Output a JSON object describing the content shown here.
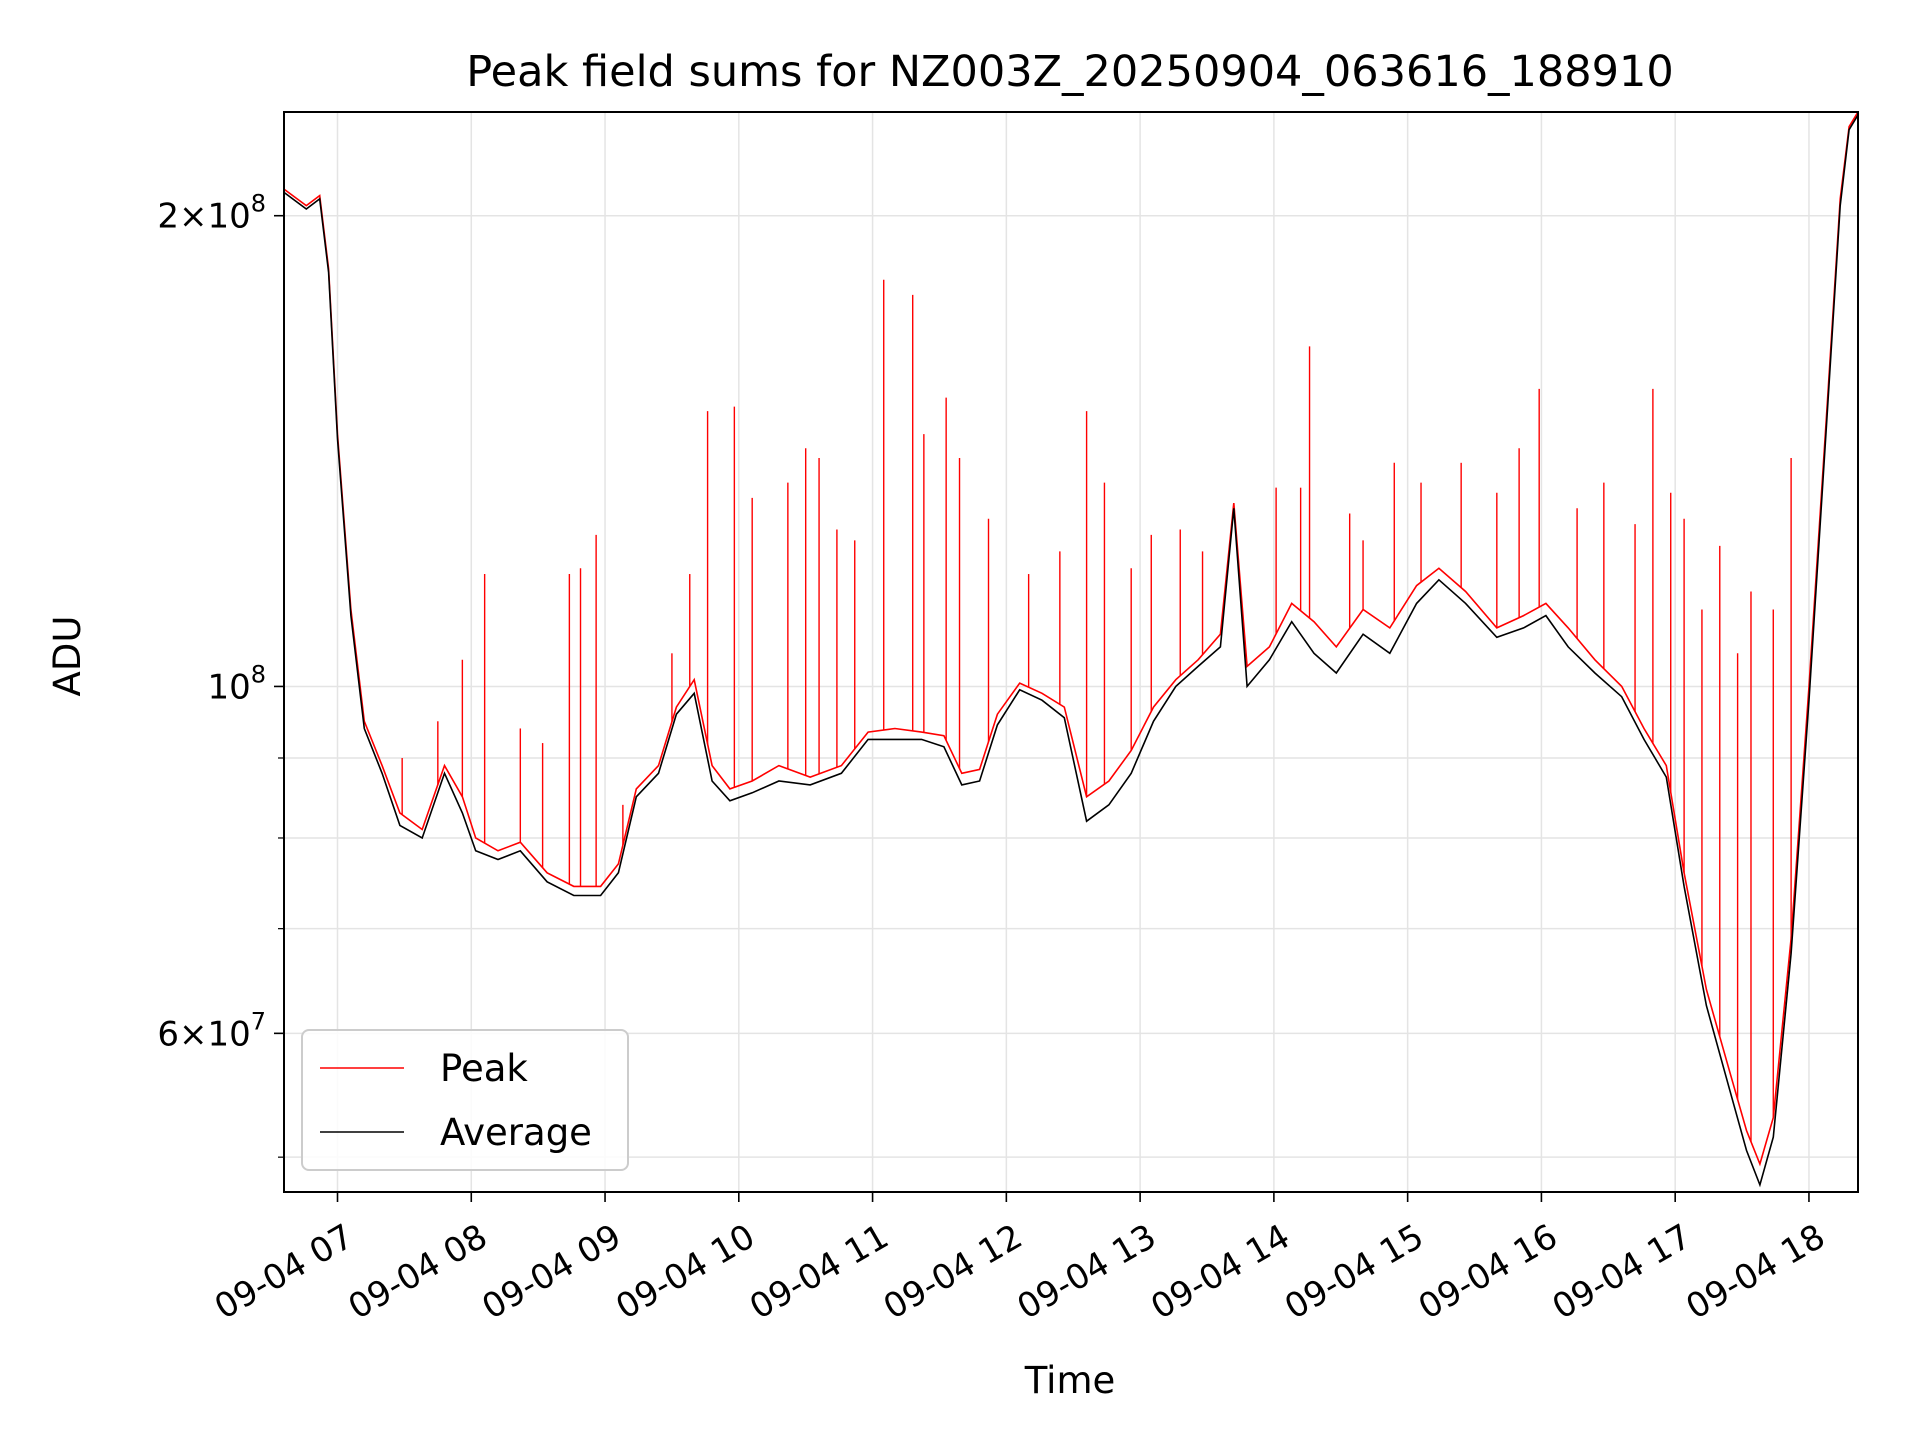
{
  "chart_data": {
    "type": "line",
    "title": "Peak field sums for NZ003Z_20250904_063616_188910",
    "xlabel": "Time",
    "ylabel": "ADU",
    "yscale": "log",
    "xlim": [
      "2025-09-04T06:36",
      "2025-09-04T18:22"
    ],
    "ylim": [
      47500000,
      233000000
    ],
    "grid": true,
    "legend_position": "lower-left",
    "x_ticks": [
      {
        "value": "2025-09-04T07:00",
        "label": "09-04 07"
      },
      {
        "value": "2025-09-04T08:00",
        "label": "09-04 08"
      },
      {
        "value": "2025-09-04T09:00",
        "label": "09-04 09"
      },
      {
        "value": "2025-09-04T10:00",
        "label": "09-04 10"
      },
      {
        "value": "2025-09-04T11:00",
        "label": "09-04 11"
      },
      {
        "value": "2025-09-04T12:00",
        "label": "09-04 12"
      },
      {
        "value": "2025-09-04T13:00",
        "label": "09-04 13"
      },
      {
        "value": "2025-09-04T14:00",
        "label": "09-04 14"
      },
      {
        "value": "2025-09-04T15:00",
        "label": "09-04 15"
      },
      {
        "value": "2025-09-04T16:00",
        "label": "09-04 16"
      },
      {
        "value": "2025-09-04T17:00",
        "label": "09-04 17"
      },
      {
        "value": "2025-09-04T18:00",
        "label": "09-04 18"
      }
    ],
    "y_ticks": [
      {
        "value": 200000000,
        "mantissa": "2",
        "exponent": "8"
      },
      {
        "value": 100000000,
        "mantissa": "",
        "exponent": "8"
      },
      {
        "value": 60000000,
        "mantissa": "6",
        "exponent": "7"
      }
    ],
    "y_minor_ticks": [
      50000000,
      70000000,
      80000000,
      90000000
    ],
    "series": [
      {
        "name": "Peak",
        "color": "#ff0000",
        "points": [
          [
            "2025-09-04T06:36",
            208000000
          ],
          [
            "2025-09-04T06:46",
            203000000
          ],
          [
            "2025-09-04T06:52",
            206000000
          ],
          [
            "2025-09-04T06:56",
            185000000
          ],
          [
            "2025-09-04T07:00",
            145000000
          ],
          [
            "2025-09-04T07:06",
            112000000
          ],
          [
            "2025-09-04T07:12",
            95000000
          ],
          [
            "2025-09-04T07:20",
            89000000
          ],
          [
            "2025-09-04T07:28",
            83000000
          ],
          [
            "2025-09-04T07:38",
            81000000
          ],
          [
            "2025-09-04T07:48",
            89000000
          ],
          [
            "2025-09-04T07:56",
            85000000
          ],
          [
            "2025-09-04T08:02",
            80000000
          ],
          [
            "2025-09-04T08:12",
            78500000
          ],
          [
            "2025-09-04T08:22",
            79500000
          ],
          [
            "2025-09-04T08:34",
            76000000
          ],
          [
            "2025-09-04T08:46",
            74500000
          ],
          [
            "2025-09-04T08:58",
            74500000
          ],
          [
            "2025-09-04T09:06",
            77000000
          ],
          [
            "2025-09-04T09:14",
            86000000
          ],
          [
            "2025-09-04T09:24",
            89000000
          ],
          [
            "2025-09-04T09:32",
            97000000
          ],
          [
            "2025-09-04T09:40",
            101000000
          ],
          [
            "2025-09-04T09:48",
            89000000
          ],
          [
            "2025-09-04T09:56",
            86000000
          ],
          [
            "2025-09-04T10:06",
            87000000
          ],
          [
            "2025-09-04T10:18",
            89000000
          ],
          [
            "2025-09-04T10:32",
            87500000
          ],
          [
            "2025-09-04T10:46",
            89000000
          ],
          [
            "2025-09-04T10:58",
            93500000
          ],
          [
            "2025-09-04T11:10",
            94000000
          ],
          [
            "2025-09-04T11:22",
            93500000
          ],
          [
            "2025-09-04T11:32",
            93000000
          ],
          [
            "2025-09-04T11:40",
            88000000
          ],
          [
            "2025-09-04T11:48",
            88500000
          ],
          [
            "2025-09-04T11:56",
            96000000
          ],
          [
            "2025-09-04T12:06",
            100500000
          ],
          [
            "2025-09-04T12:16",
            99000000
          ],
          [
            "2025-09-04T12:26",
            97000000
          ],
          [
            "2025-09-04T12:36",
            85000000
          ],
          [
            "2025-09-04T12:46",
            87000000
          ],
          [
            "2025-09-04T12:56",
            91000000
          ],
          [
            "2025-09-04T13:06",
            97000000
          ],
          [
            "2025-09-04T13:16",
            101000000
          ],
          [
            "2025-09-04T13:26",
            104000000
          ],
          [
            "2025-09-04T13:36",
            108000000
          ],
          [
            "2025-09-04T13:42",
            131000000
          ],
          [
            "2025-09-04T13:48",
            103000000
          ],
          [
            "2025-09-04T13:58",
            106000000
          ],
          [
            "2025-09-04T14:08",
            113000000
          ],
          [
            "2025-09-04T14:18",
            110000000
          ],
          [
            "2025-09-04T14:28",
            106000000
          ],
          [
            "2025-09-04T14:40",
            112000000
          ],
          [
            "2025-09-04T14:52",
            109000000
          ],
          [
            "2025-09-04T15:04",
            116000000
          ],
          [
            "2025-09-04T15:14",
            119000000
          ],
          [
            "2025-09-04T15:26",
            115000000
          ],
          [
            "2025-09-04T15:40",
            109000000
          ],
          [
            "2025-09-04T15:52",
            111000000
          ],
          [
            "2025-09-04T16:02",
            113000000
          ],
          [
            "2025-09-04T16:12",
            109000000
          ],
          [
            "2025-09-04T16:24",
            104000000
          ],
          [
            "2025-09-04T16:36",
            100000000
          ],
          [
            "2025-09-04T16:46",
            94000000
          ],
          [
            "2025-09-04T16:56",
            89000000
          ],
          [
            "2025-09-04T17:04",
            76000000
          ],
          [
            "2025-09-04T17:14",
            64000000
          ],
          [
            "2025-09-04T17:24",
            57000000
          ],
          [
            "2025-09-04T17:32",
            52000000
          ],
          [
            "2025-09-04T17:38",
            49500000
          ],
          [
            "2025-09-04T17:44",
            53000000
          ],
          [
            "2025-09-04T17:52",
            69000000
          ],
          [
            "2025-09-04T18:00",
            100000000
          ],
          [
            "2025-09-04T18:08",
            150000000
          ],
          [
            "2025-09-04T18:14",
            205000000
          ],
          [
            "2025-09-04T18:18",
            228000000
          ],
          [
            "2025-09-04T18:22",
            233000000
          ]
        ],
        "spikes": [
          [
            "2025-09-04T07:29",
            90000000
          ],
          [
            "2025-09-04T07:45",
            95000000
          ],
          [
            "2025-09-04T07:56",
            104000000
          ],
          [
            "2025-09-04T08:06",
            118000000
          ],
          [
            "2025-09-04T08:22",
            94000000
          ],
          [
            "2025-09-04T08:32",
            92000000
          ],
          [
            "2025-09-04T08:44",
            118000000
          ],
          [
            "2025-09-04T08:49",
            119000000
          ],
          [
            "2025-09-04T08:56",
            125000000
          ],
          [
            "2025-09-04T09:08",
            84000000
          ],
          [
            "2025-09-04T09:30",
            105000000
          ],
          [
            "2025-09-04T09:38",
            118000000
          ],
          [
            "2025-09-04T09:46",
            150000000
          ],
          [
            "2025-09-04T09:58",
            151000000
          ],
          [
            "2025-09-04T10:06",
            132000000
          ],
          [
            "2025-09-04T10:22",
            135000000
          ],
          [
            "2025-09-04T10:30",
            142000000
          ],
          [
            "2025-09-04T10:36",
            140000000
          ],
          [
            "2025-09-04T10:44",
            126000000
          ],
          [
            "2025-09-04T10:52",
            124000000
          ],
          [
            "2025-09-04T11:05",
            182000000
          ],
          [
            "2025-09-04T11:18",
            178000000
          ],
          [
            "2025-09-04T11:23",
            145000000
          ],
          [
            "2025-09-04T11:33",
            153000000
          ],
          [
            "2025-09-04T11:39",
            140000000
          ],
          [
            "2025-09-04T11:52",
            128000000
          ],
          [
            "2025-09-04T12:10",
            118000000
          ],
          [
            "2025-09-04T12:24",
            122000000
          ],
          [
            "2025-09-04T12:36",
            150000000
          ],
          [
            "2025-09-04T12:44",
            135000000
          ],
          [
            "2025-09-04T12:56",
            119000000
          ],
          [
            "2025-09-04T13:05",
            125000000
          ],
          [
            "2025-09-04T13:18",
            126000000
          ],
          [
            "2025-09-04T13:28",
            122000000
          ],
          [
            "2025-09-04T14:01",
            134000000
          ],
          [
            "2025-09-04T14:12",
            134000000
          ],
          [
            "2025-09-04T14:16",
            165000000
          ],
          [
            "2025-09-04T14:34",
            129000000
          ],
          [
            "2025-09-04T14:40",
            124000000
          ],
          [
            "2025-09-04T14:54",
            139000000
          ],
          [
            "2025-09-04T15:06",
            135000000
          ],
          [
            "2025-09-04T15:24",
            139000000
          ],
          [
            "2025-09-04T15:40",
            133000000
          ],
          [
            "2025-09-04T15:50",
            142000000
          ],
          [
            "2025-09-04T15:59",
            155000000
          ],
          [
            "2025-09-04T16:16",
            130000000
          ],
          [
            "2025-09-04T16:28",
            135000000
          ],
          [
            "2025-09-04T16:42",
            127000000
          ],
          [
            "2025-09-04T16:50",
            155000000
          ],
          [
            "2025-09-04T16:58",
            133000000
          ],
          [
            "2025-09-04T17:04",
            128000000
          ],
          [
            "2025-09-04T17:12",
            112000000
          ],
          [
            "2025-09-04T17:20",
            123000000
          ],
          [
            "2025-09-04T17:28",
            105000000
          ],
          [
            "2025-09-04T17:34",
            115000000
          ],
          [
            "2025-09-04T17:44",
            112000000
          ],
          [
            "2025-09-04T17:52",
            140000000
          ]
        ]
      },
      {
        "name": "Average",
        "color": "#000000",
        "points": [
          [
            "2025-09-04T06:36",
            207000000
          ],
          [
            "2025-09-04T06:46",
            202000000
          ],
          [
            "2025-09-04T06:52",
            205000000
          ],
          [
            "2025-09-04T06:56",
            184000000
          ],
          [
            "2025-09-04T07:00",
            144000000
          ],
          [
            "2025-09-04T07:06",
            111000000
          ],
          [
            "2025-09-04T07:12",
            94000000
          ],
          [
            "2025-09-04T07:20",
            88000000
          ],
          [
            "2025-09-04T07:28",
            81500000
          ],
          [
            "2025-09-04T07:38",
            80000000
          ],
          [
            "2025-09-04T07:48",
            88000000
          ],
          [
            "2025-09-04T07:56",
            83000000
          ],
          [
            "2025-09-04T08:02",
            78500000
          ],
          [
            "2025-09-04T08:12",
            77500000
          ],
          [
            "2025-09-04T08:22",
            78500000
          ],
          [
            "2025-09-04T08:34",
            75000000
          ],
          [
            "2025-09-04T08:46",
            73500000
          ],
          [
            "2025-09-04T08:58",
            73500000
          ],
          [
            "2025-09-04T09:06",
            76000000
          ],
          [
            "2025-09-04T09:14",
            85000000
          ],
          [
            "2025-09-04T09:24",
            88000000
          ],
          [
            "2025-09-04T09:32",
            96000000
          ],
          [
            "2025-09-04T09:40",
            99000000
          ],
          [
            "2025-09-04T09:48",
            87000000
          ],
          [
            "2025-09-04T09:56",
            84500000
          ],
          [
            "2025-09-04T10:06",
            85500000
          ],
          [
            "2025-09-04T10:18",
            87000000
          ],
          [
            "2025-09-04T10:32",
            86500000
          ],
          [
            "2025-09-04T10:46",
            88000000
          ],
          [
            "2025-09-04T10:58",
            92500000
          ],
          [
            "2025-09-04T11:10",
            92500000
          ],
          [
            "2025-09-04T11:22",
            92500000
          ],
          [
            "2025-09-04T11:32",
            91500000
          ],
          [
            "2025-09-04T11:40",
            86500000
          ],
          [
            "2025-09-04T11:48",
            87000000
          ],
          [
            "2025-09-04T11:56",
            94500000
          ],
          [
            "2025-09-04T12:06",
            99500000
          ],
          [
            "2025-09-04T12:16",
            98000000
          ],
          [
            "2025-09-04T12:26",
            95500000
          ],
          [
            "2025-09-04T12:36",
            82000000
          ],
          [
            "2025-09-04T12:46",
            84000000
          ],
          [
            "2025-09-04T12:56",
            88000000
          ],
          [
            "2025-09-04T13:06",
            95000000
          ],
          [
            "2025-09-04T13:16",
            100000000
          ],
          [
            "2025-09-04T13:26",
            103000000
          ],
          [
            "2025-09-04T13:36",
            106000000
          ],
          [
            "2025-09-04T13:42",
            130000000
          ],
          [
            "2025-09-04T13:48",
            100000000
          ],
          [
            "2025-09-04T13:58",
            104000000
          ],
          [
            "2025-09-04T14:08",
            110000000
          ],
          [
            "2025-09-04T14:18",
            105000000
          ],
          [
            "2025-09-04T14:28",
            102000000
          ],
          [
            "2025-09-04T14:40",
            108000000
          ],
          [
            "2025-09-04T14:52",
            105000000
          ],
          [
            "2025-09-04T15:04",
            113000000
          ],
          [
            "2025-09-04T15:14",
            117000000
          ],
          [
            "2025-09-04T15:26",
            113000000
          ],
          [
            "2025-09-04T15:40",
            107500000
          ],
          [
            "2025-09-04T15:52",
            109000000
          ],
          [
            "2025-09-04T16:02",
            111000000
          ],
          [
            "2025-09-04T16:12",
            106000000
          ],
          [
            "2025-09-04T16:24",
            102000000
          ],
          [
            "2025-09-04T16:36",
            98500000
          ],
          [
            "2025-09-04T16:46",
            92500000
          ],
          [
            "2025-09-04T16:56",
            87500000
          ],
          [
            "2025-09-04T17:04",
            74500000
          ],
          [
            "2025-09-04T17:14",
            62500000
          ],
          [
            "2025-09-04T17:24",
            55500000
          ],
          [
            "2025-09-04T17:32",
            50500000
          ],
          [
            "2025-09-04T17:38",
            48000000
          ],
          [
            "2025-09-04T17:44",
            51500000
          ],
          [
            "2025-09-04T17:52",
            67500000
          ],
          [
            "2025-09-04T18:00",
            98000000
          ],
          [
            "2025-09-04T18:08",
            148000000
          ],
          [
            "2025-09-04T18:14",
            203000000
          ],
          [
            "2025-09-04T18:18",
            227000000
          ],
          [
            "2025-09-04T18:22",
            232000000
          ]
        ]
      }
    ]
  }
}
